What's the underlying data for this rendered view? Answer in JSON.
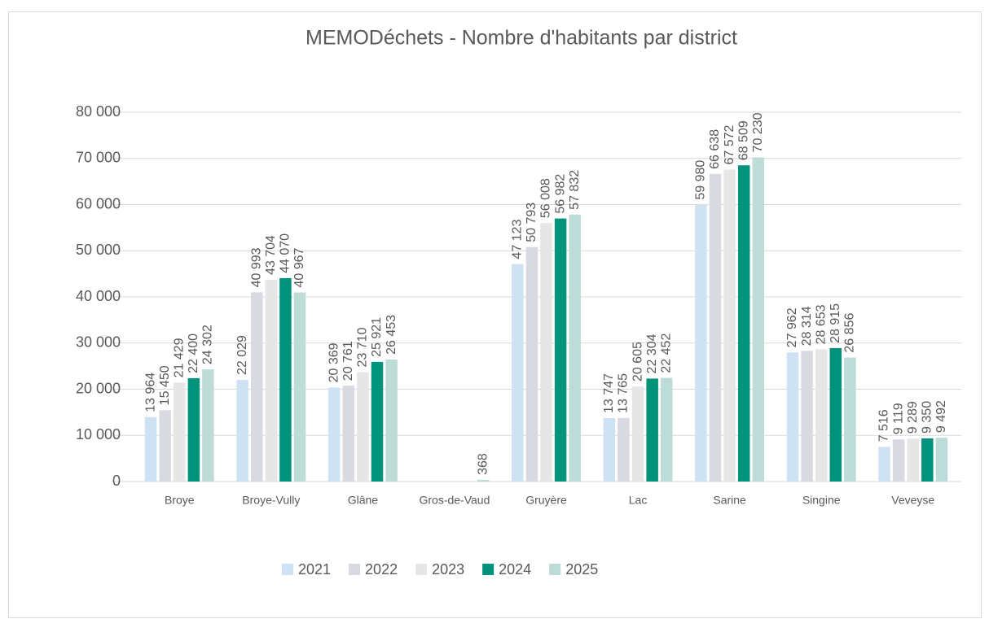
{
  "chart_data": {
    "type": "bar",
    "title": "MEMODéchets - Nombre d'habitants par district",
    "categories": [
      "Broye",
      "Broye-Vully",
      "Glâne",
      "Gros-de-Vaud",
      "Gruyère",
      "Lac",
      "Sarine",
      "Singine",
      "Veveyse"
    ],
    "series": [
      {
        "name": "2021",
        "color": "#cfe2f3",
        "values": [
          13964,
          22029,
          20369,
          null,
          47123,
          13747,
          59980,
          27962,
          7516
        ],
        "value_labels": [
          "13 964",
          "22 029",
          "20 369",
          null,
          "47 123",
          "13 747",
          "59 980",
          "27 962",
          "7 516"
        ]
      },
      {
        "name": "2022",
        "color": "#d9d9e1",
        "values": [
          15450,
          40993,
          20761,
          null,
          50793,
          13765,
          66638,
          28314,
          9119
        ],
        "value_labels": [
          "15 450",
          "40 993",
          "20 761",
          null,
          "50 793",
          "13 765",
          "66 638",
          "28 314",
          "9 119"
        ]
      },
      {
        "name": "2023",
        "color": "#e6e6e6",
        "values": [
          21429,
          43704,
          23710,
          null,
          56008,
          20605,
          67572,
          28653,
          9289
        ],
        "value_labels": [
          "21 429",
          "43 704",
          "23 710",
          null,
          "56 008",
          "20 605",
          "67 572",
          "28 653",
          "9 289"
        ]
      },
      {
        "name": "2024",
        "color": "#00927b",
        "values": [
          22400,
          44070,
          25921,
          null,
          56982,
          22304,
          68509,
          28915,
          9350
        ],
        "value_labels": [
          "22 400",
          "44 070",
          "25 921",
          null,
          "56 982",
          "22 304",
          "68 509",
          "28 915",
          "9 350"
        ]
      },
      {
        "name": "2025",
        "color": "#bddcd7",
        "values": [
          24302,
          40967,
          26453,
          368,
          57832,
          22452,
          70230,
          26856,
          9492
        ],
        "value_labels": [
          "24 302",
          "40 967",
          "26 453",
          "368",
          "57 832",
          "22 452",
          "70 230",
          "26 856",
          "9 492"
        ]
      }
    ],
    "ylim": [
      0,
      80000
    ],
    "yticks": [
      0,
      {
        "value": 10000,
        "label": "10 000"
      },
      {
        "value": 20000,
        "label": "20 000"
      },
      {
        "value": 30000,
        "label": "30 000"
      },
      {
        "value": 40000,
        "label": "40 000"
      },
      {
        "value": 50000,
        "label": "50 000"
      },
      {
        "value": 60000,
        "label": "60 000"
      },
      {
        "value": 70000,
        "label": "70 000"
      },
      {
        "value": 80000,
        "label": "80 000"
      }
    ],
    "grid": true,
    "legend": "bottom"
  }
}
